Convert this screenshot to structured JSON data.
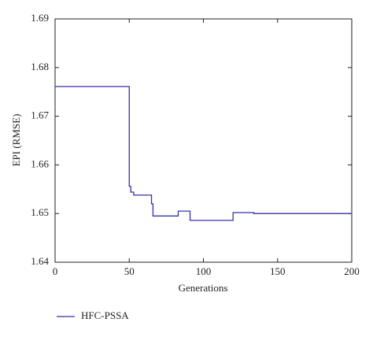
{
  "chart_data": {
    "type": "line",
    "xlabel": "Generations",
    "ylabel": "EPI (RMSE)",
    "x": [
      0,
      50,
      50,
      51,
      51,
      53,
      53,
      65,
      65,
      66,
      66,
      83,
      83,
      91,
      91,
      120,
      120,
      134,
      134,
      200
    ],
    "series": [
      {
        "name": "HFC-PSSA",
        "color": "#3333a8",
        "values": [
          1.6761,
          1.6761,
          1.6556,
          1.6556,
          1.6544,
          1.6544,
          1.6538,
          1.6538,
          1.652,
          1.652,
          1.6495,
          1.6495,
          1.6505,
          1.6505,
          1.6486,
          1.6486,
          1.6502,
          1.6502,
          1.65,
          1.65
        ]
      }
    ],
    "xlim": [
      0,
      200
    ],
    "xticks": [
      0,
      50,
      100,
      150,
      200
    ],
    "ylim": [
      1.64,
      1.69
    ],
    "yticks": [
      1.64,
      1.65,
      1.66,
      1.67,
      1.68,
      1.69
    ],
    "legend": "bottom-left"
  }
}
